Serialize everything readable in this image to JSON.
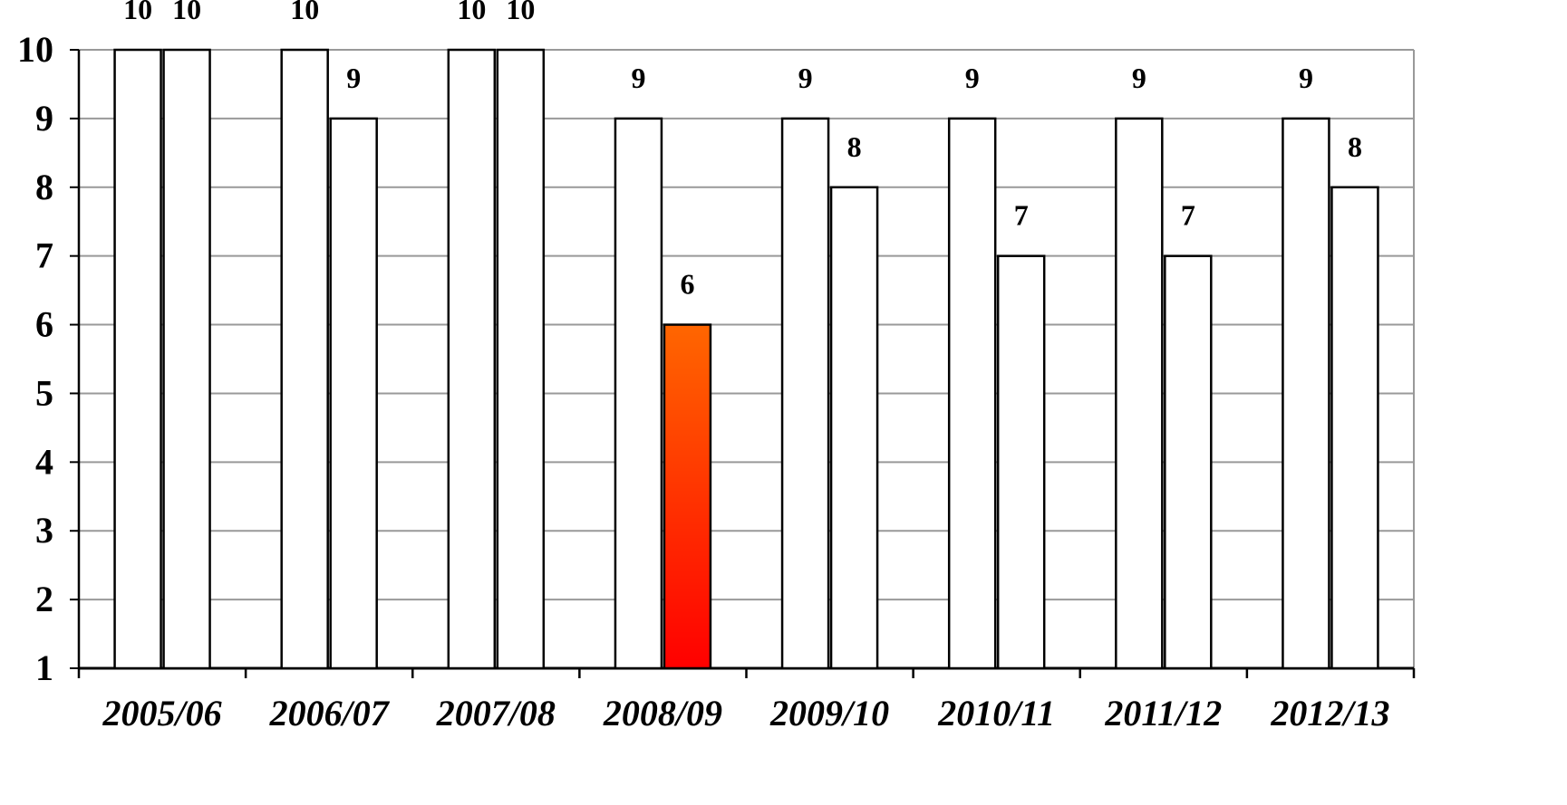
{
  "chart_data": {
    "type": "bar",
    "categories": [
      "2005/06",
      "2006/07",
      "2007/08",
      "2008/09",
      "2009/10",
      "2010/11",
      "2011/12",
      "2012/13"
    ],
    "series": [
      {
        "values": [
          10,
          10,
          10,
          9,
          9,
          9,
          9,
          9
        ],
        "color": "#ffffff"
      },
      {
        "values": [
          10,
          9,
          10,
          6,
          8,
          7,
          7,
          8
        ],
        "color": "#ffffff"
      }
    ],
    "highlight": {
      "series": 1,
      "category": 3,
      "color_top": "#ff6600",
      "color_bottom": "#ff0000"
    },
    "ylim": [
      1,
      10
    ],
    "yticks": [
      "1",
      "2",
      "3",
      "4",
      "5",
      "6",
      "7",
      "8",
      "9",
      "10"
    ],
    "grid": true,
    "gridline_color": "#999999",
    "data_labels": true
  }
}
